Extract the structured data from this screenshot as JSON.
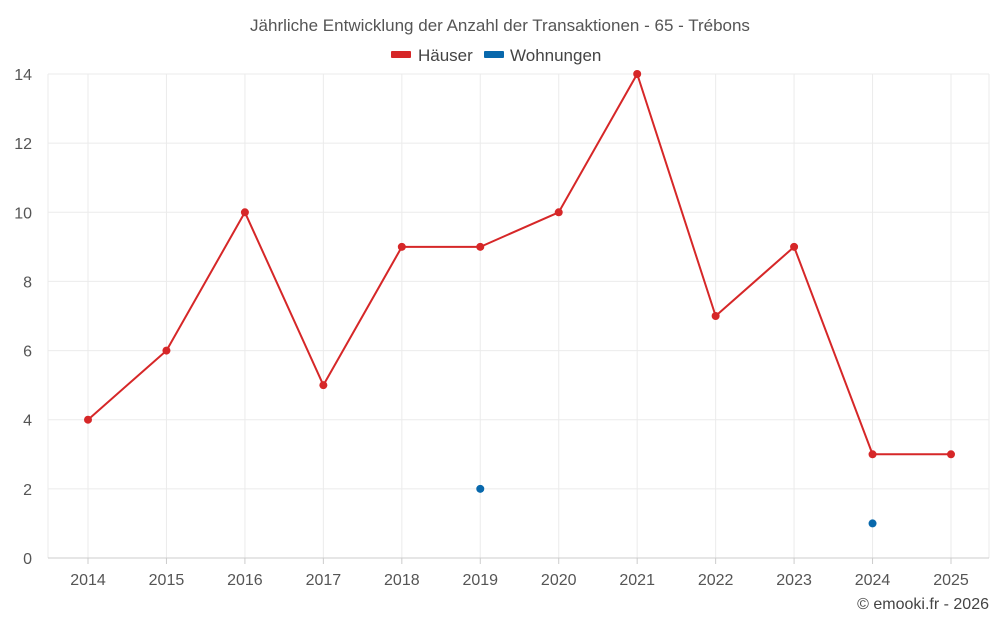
{
  "chart_data": {
    "type": "line",
    "title": "Jährliche Entwicklung der Anzahl der Transaktionen - 65 - Trébons",
    "categories": [
      "2014",
      "2015",
      "2016",
      "2017",
      "2018",
      "2019",
      "2020",
      "2021",
      "2022",
      "2023",
      "2024",
      "2025"
    ],
    "series": [
      {
        "name": "Häuser",
        "color": "#d62728",
        "values": [
          4,
          6,
          10,
          5,
          9,
          9,
          10,
          14,
          7,
          9,
          3,
          3
        ],
        "line": true
      },
      {
        "name": "Wohnungen",
        "color": "#0868ac",
        "values": [
          null,
          null,
          null,
          null,
          null,
          2,
          null,
          null,
          null,
          null,
          1,
          null
        ],
        "line": false
      }
    ],
    "y_ticks": [
      0,
      2,
      4,
      6,
      8,
      10,
      12,
      14
    ],
    "ylim": [
      0,
      14
    ],
    "xlabel": "",
    "ylabel": "",
    "grid": true,
    "legend_position": "top-center"
  },
  "credit": "© emooki.fr - 2026"
}
